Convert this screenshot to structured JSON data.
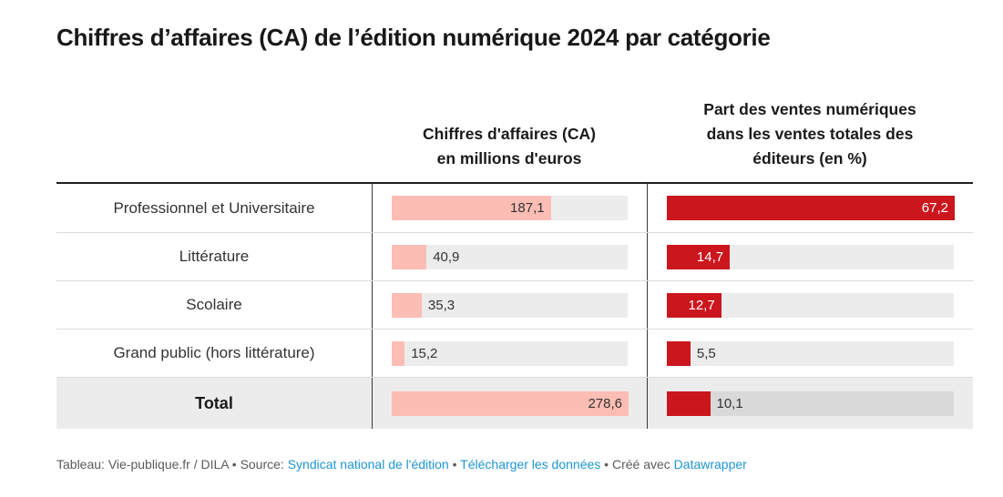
{
  "title": "Chiffres d’affaires (CA) de l’édition numérique 2024 par catégorie",
  "chart_data": {
    "type": "table",
    "title": "Chiffres d’affaires (CA) de l’édition numérique 2024 par catégorie",
    "categories": [
      "Professionnel et Universitaire",
      "Littérature",
      "Scolaire",
      "Grand public (hors littérature)",
      "Total"
    ],
    "total_row_index": 4,
    "decimal_separator": ",",
    "series": [
      {
        "name": "Chiffres d'affaires (CA)\nen millions d'euros",
        "values": [
          187.1,
          40.9,
          35.3,
          15.2,
          278.6
        ],
        "display_values": [
          "187,1",
          "40,9",
          "35,3",
          "15,2",
          "278,6"
        ],
        "axis_max": 278.6,
        "bar_color": "#fcbdb4",
        "inside_label_color": "#333333"
      },
      {
        "name": "Part des ventes numériques\ndans les ventes totales des\néditeurs (en %)",
        "values": [
          67.2,
          14.7,
          12.7,
          5.5,
          10.1
        ],
        "display_values": [
          "67,2",
          "14,7",
          "12,7",
          "5,5",
          "10,1"
        ],
        "axis_max": 67.2,
        "bar_color": "#cb161e",
        "inside_label_color": "#ffffff"
      }
    ]
  },
  "footer": {
    "segments": [
      {
        "text": "Tableau: Vie-publique.fr / DILA",
        "link": false,
        "name": "footer-attribution"
      },
      {
        "text": " • ",
        "link": false,
        "name": "footer-separator"
      },
      {
        "text": "Source: ",
        "link": false,
        "name": "footer-source-label"
      },
      {
        "text": "Syndicat national de l'édition",
        "link": true,
        "name": "footer-source-link"
      },
      {
        "text": " • ",
        "link": false,
        "name": "footer-separator"
      },
      {
        "text": "Télécharger les données",
        "link": true,
        "name": "footer-download-link"
      },
      {
        "text": " • ",
        "link": false,
        "name": "footer-separator"
      },
      {
        "text": "Créé avec ",
        "link": false,
        "name": "footer-created-with-label"
      },
      {
        "text": "Datawrapper",
        "link": true,
        "name": "footer-datawrapper-link"
      }
    ]
  },
  "colors": {
    "title_text": "#181818",
    "header_rule": "#1f1f1f",
    "row_separator": "#dcdcdc",
    "column_divider": "#3a3a3a",
    "bar_track": "#ececec",
    "total_row_background": "#ececec",
    "total_row_track": "#d9d9d9",
    "ca_bar": "#fcbdb4",
    "part_bar": "#cb161e",
    "footer_text": "#5b5b5b",
    "footer_link": "#1e96d2"
  }
}
